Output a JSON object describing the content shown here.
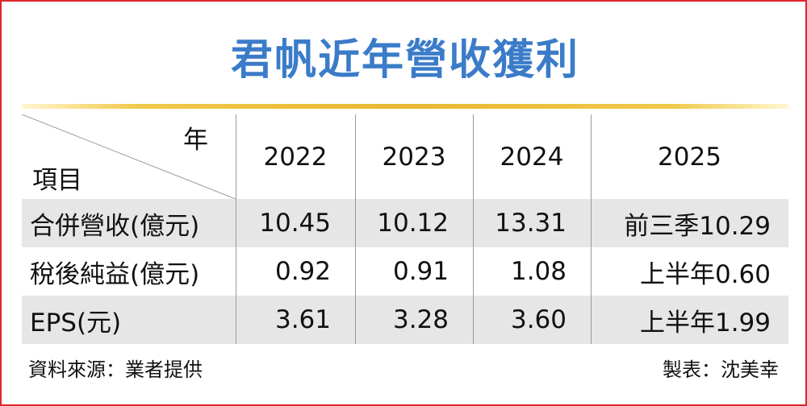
{
  "title": "君帆近年營收獲利",
  "table": {
    "corner": {
      "column": "年",
      "row": "項目"
    },
    "columns": [
      "2022",
      "2023",
      "2024",
      "2025"
    ],
    "rows": [
      [
        "合併營收(億元)",
        "10.45",
        "10.12",
        "13.31",
        "前三季10.29"
      ],
      [
        "稅後純益(億元)",
        "0.92",
        "0.91",
        "1.08",
        "上半年0.60"
      ],
      [
        "EPS(元)",
        "3.61",
        "3.28",
        "3.60",
        "上半年1.99"
      ]
    ]
  },
  "footer": {
    "source": "資料來源：業者提供",
    "credit": "製表：沈美幸"
  }
}
